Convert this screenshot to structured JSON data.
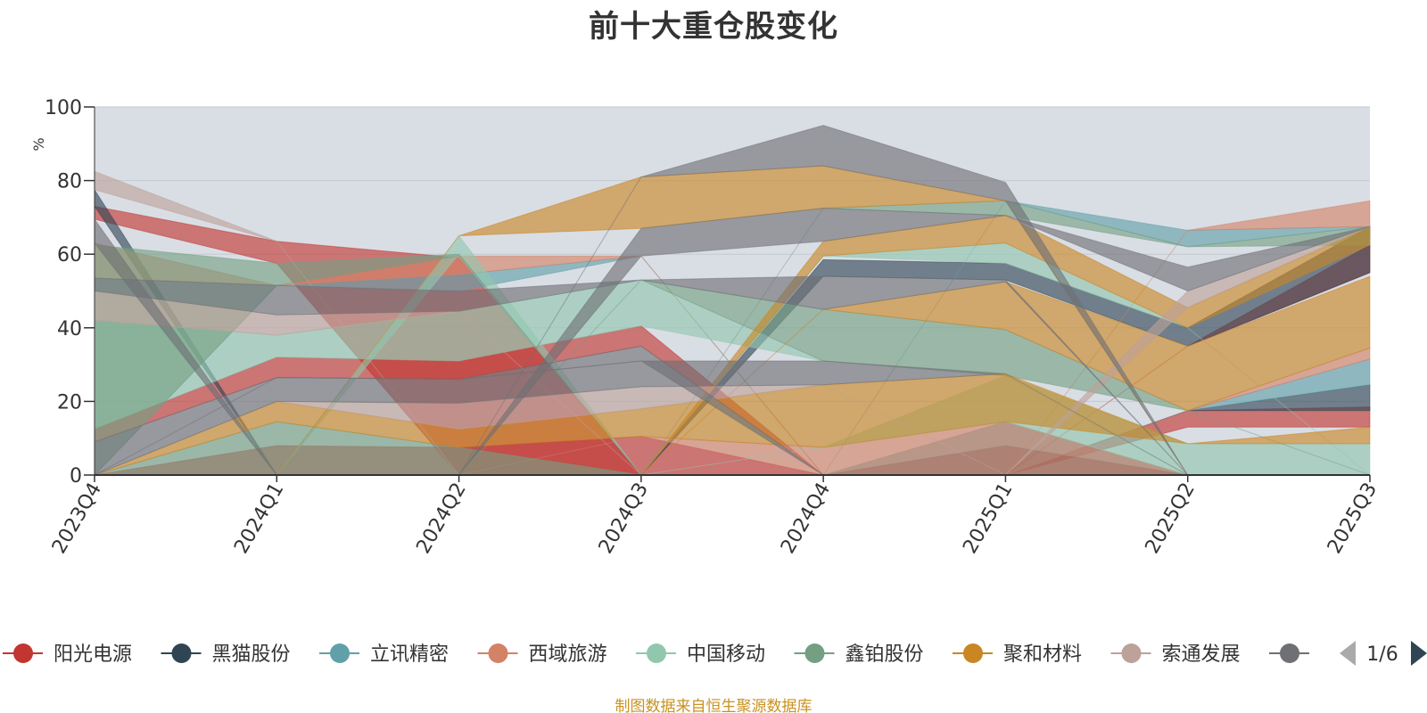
{
  "chart_data": {
    "type": "area",
    "stacked": false,
    "title": "前十大重仓股变化",
    "ylabel": "%",
    "ylim": [
      0,
      100
    ],
    "yticks": [
      0,
      20,
      40,
      60,
      80,
      100
    ],
    "categories": [
      "2023Q4",
      "2024Q1",
      "2024Q2",
      "2024Q3",
      "2024Q4",
      "2025Q1",
      "2025Q2",
      "2025Q3"
    ],
    "grid": true,
    "legend_position": "bottom",
    "legend_page": "1/6",
    "series": [
      {
        "name": "阳光电源",
        "color": "#c23531",
        "bands": [
          {
            "lower": [
              0,
              0,
              0,
              0,
              0,
              0,
              0,
              0
            ],
            "upper": [
              0,
              8,
              7.5,
              10.5,
              0,
              0,
              0,
              0
            ]
          },
          {
            "lower": [
              9,
              26.5,
              26,
              35,
              0,
              0,
              13,
              13
            ],
            "upper": [
              12.5,
              32,
              31,
              40.5,
              0,
              0,
              17.5,
              18.5
            ]
          },
          {
            "lower": [
              69.5,
              57.5,
              0,
              0,
              0,
              0,
              35,
              55
            ],
            "upper": [
              73,
              63.5,
              59,
              0,
              0,
              0,
              35,
              62.5
            ]
          }
        ]
      },
      {
        "name": "黑猫股份",
        "color": "#2f4554",
        "bands": [
          {
            "lower": [
              0,
              0,
              0,
              0,
              0,
              0,
              0,
              0
            ],
            "upper": [
              0,
              0,
              0,
              0,
              0,
              8,
              0,
              0
            ]
          },
          {
            "lower": [
              0,
              0,
              0,
              0,
              54,
              53,
              35,
              55
            ],
            "upper": [
              0,
              0,
              0,
              0,
              58.5,
              57.5,
              40,
              67.5
            ]
          },
          {
            "lower": [
              0,
              0,
              0,
              0,
              0,
              0,
              17.5,
              17.5
            ],
            "upper": [
              0,
              0,
              0,
              0,
              0,
              0,
              17.5,
              24.5
            ]
          },
          {
            "lower": [
              73,
              0,
              0,
              0,
              0,
              0,
              0,
              0
            ],
            "upper": [
              77.5,
              0,
              0,
              0,
              0,
              0,
              0,
              0
            ]
          }
        ]
      },
      {
        "name": "立讯精密",
        "color": "#61a0a8",
        "bands": [
          {
            "lower": [
              0,
              0,
              0,
              0,
              0,
              8,
              0,
              0
            ],
            "upper": [
              0,
              0,
              0,
              0,
              0,
              14.5,
              0,
              0
            ]
          },
          {
            "lower": [
              0,
              51.5,
              50,
              59.5,
              0,
              0,
              0,
              0
            ],
            "upper": [
              0,
              51.5,
              54.5,
              59.5,
              0,
              0,
              0,
              0
            ]
          },
          {
            "lower": [
              0,
              0,
              0,
              0,
              0,
              0,
              17.5,
              24.5
            ],
            "upper": [
              0,
              0,
              0,
              0,
              0,
              0,
              17.5,
              31.5
            ]
          },
          {
            "lower": [
              0,
              0,
              0,
              0,
              0,
              74.5,
              62,
              67.5
            ],
            "upper": [
              0,
              0,
              0,
              0,
              0,
              74.5,
              66.5,
              67.5
            ]
          }
        ]
      },
      {
        "name": "西域旅游",
        "color": "#d48265",
        "bands": [
          {
            "lower": [
              0,
              0,
              0,
              10.5,
              0,
              0,
              0,
              0
            ],
            "upper": [
              0,
              0,
              0,
              10.5,
              7.5,
              14.5,
              0,
              0
            ]
          },
          {
            "lower": [
              53.5,
              51.5,
              54.5,
              59.5,
              0,
              0,
              0,
              0
            ],
            "upper": [
              63,
              51.5,
              59.5,
              59.5,
              0,
              0,
              0,
              0
            ]
          },
          {
            "lower": [
              0,
              0,
              0,
              0,
              0,
              0,
              17.5,
              31.5
            ],
            "upper": [
              0,
              0,
              0,
              0,
              0,
              0,
              17.5,
              34.5
            ]
          },
          {
            "lower": [
              0,
              0,
              0,
              0,
              0,
              0,
              66.5,
              67.5
            ],
            "upper": [
              0,
              0,
              0,
              0,
              0,
              0,
              66.5,
              74.5
            ]
          }
        ]
      },
      {
        "name": "中国移动",
        "color": "#91c7ae",
        "bands": [
          {
            "lower": [
              12.5,
              32,
              31,
              40.5,
              31,
              27,
              0,
              0
            ],
            "upper": [
              42,
              38,
              44.5,
              53,
              31,
              27,
              0,
              0
            ]
          },
          {
            "lower": [
              0,
              0,
              0,
              0,
              7.5,
              14.5,
              0,
              0
            ],
            "upper": [
              0,
              0,
              0,
              0,
              7.5,
              27,
              8.5,
              8.5
            ]
          },
          {
            "lower": [
              0,
              0,
              60,
              0,
              0,
              0,
              0,
              0
            ],
            "upper": [
              0,
              0,
              65,
              0,
              0,
              0,
              0,
              0
            ]
          },
          {
            "lower": [
              0,
              0,
              0,
              0,
              59.5,
              57.5,
              40,
              0
            ],
            "upper": [
              0,
              0,
              0,
              0,
              59.5,
              63,
              40,
              0
            ]
          }
        ]
      },
      {
        "name": "鑫铂股份",
        "color": "#749f83",
        "bands": [
          {
            "lower": [
              0,
              0,
              0,
              0,
              0,
              0,
              0,
              0
            ],
            "upper": [
              0,
              14.5,
              7.5,
              0,
              0,
              0,
              0,
              0
            ]
          },
          {
            "lower": [
              0,
              0,
              0,
              53,
              31,
              27,
              17.5,
              0
            ],
            "upper": [
              0,
              0,
              0,
              53,
              45,
              39.5,
              17.5,
              0
            ]
          },
          {
            "lower": [
              0,
              51.5,
              59.5,
              0,
              0,
              0,
              0,
              0
            ],
            "upper": [
              62.5,
              57.5,
              60,
              0,
              0,
              0,
              0,
              0
            ]
          },
          {
            "lower": [
              0,
              0,
              0,
              0,
              72.5,
              70.5,
              62,
              62.5
            ],
            "upper": [
              0,
              0,
              0,
              0,
              72.5,
              74.5,
              62,
              67.5
            ]
          }
        ]
      },
      {
        "name": "聚和材料",
        "color": "#ca8622",
        "bands": [
          {
            "lower": [
              0,
              14.5,
              7.5,
              10.5,
              7.5,
              14.5,
              8.5,
              8.5
            ],
            "upper": [
              0,
              20,
              12.5,
              18,
              24.5,
              27.5,
              8.5,
              13
            ]
          },
          {
            "lower": [
              0,
              0,
              0,
              0,
              45,
              39.5,
              17.5,
              34.5
            ],
            "upper": [
              0,
              0,
              0,
              0,
              45,
              52.5,
              35,
              54
            ]
          },
          {
            "lower": [
              0,
              0,
              0,
              0,
              59.5,
              63,
              40,
              62.5
            ],
            "upper": [
              0,
              0,
              0,
              0,
              63.5,
              70.5,
              45.5,
              67.5
            ]
          },
          {
            "lower": [
              0,
              0,
              65,
              67,
              72.5,
              74.5,
              0,
              0
            ],
            "upper": [
              0,
              0,
              65,
              81,
              84,
              74.5,
              0,
              0
            ]
          }
        ]
      },
      {
        "name": "索通发展",
        "color": "#bda29a",
        "bands": [
          {
            "lower": [
              0,
              20,
              12.5,
              18,
              24.5,
              0,
              0,
              0
            ],
            "upper": [
              0,
              20,
              19.5,
              24,
              24.5,
              0,
              0,
              0
            ]
          },
          {
            "lower": [
              42,
              38,
              44.5,
              0,
              0,
              0,
              0,
              0
            ],
            "upper": [
              50,
              43.5,
              44.5,
              0,
              0,
              0,
              0,
              0
            ]
          },
          {
            "lower": [
              0,
              0,
              0,
              0,
              0,
              0,
              45.5,
              67.5
            ],
            "upper": [
              0,
              0,
              0,
              0,
              0,
              0,
              50,
              67.5
            ]
          },
          {
            "lower": [
              77.5,
              63.5,
              0,
              0,
              0,
              0,
              0,
              0
            ],
            "upper": [
              82.5,
              63.5,
              0,
              0,
              0,
              0,
              0,
              0
            ]
          }
        ]
      },
      {
        "name": "",
        "color": "#6e7074",
        "bands": [
          {
            "lower": [
              0,
              20,
              19.5,
              24,
              24.5,
              27.5,
              0,
              0
            ],
            "upper": [
              9,
              26.5,
              26,
              31,
              31,
              27.5,
              0,
              0
            ]
          },
          {
            "lower": [
              0,
              26.5,
              26,
              31,
              0,
              0,
              0,
              0
            ],
            "upper": [
              0,
              26.5,
              26,
              35,
              0,
              0,
              0,
              0
            ]
          },
          {
            "lower": [
              50,
              43.5,
              44.5,
              53,
              45,
              52.5,
              0,
              0
            ],
            "upper": [
              53.5,
              51.5,
              50,
              53,
              54,
              53,
              0,
              0
            ]
          },
          {
            "lower": [
              0,
              0,
              0,
              59.5,
              63.5,
              70.5,
              50,
              67.5
            ],
            "upper": [
              0,
              0,
              0,
              67,
              72.5,
              70.5,
              56.5,
              67.5
            ]
          },
          {
            "lower": [
              63,
              0,
              0,
              0,
              0,
              0,
              0,
              0
            ],
            "upper": [
              69.5,
              0,
              0,
              0,
              0,
              0,
              0,
              0
            ]
          },
          {
            "lower": [
              0,
              0,
              0,
              81,
              84,
              74.5,
              0,
              0
            ],
            "upper": [
              0,
              0,
              0,
              81,
              95,
              79.5,
              0,
              0
            ]
          }
        ]
      }
    ]
  },
  "legend": {
    "page_indicator": "1/6"
  },
  "footer": {
    "source_note": "制图数据来自恒生聚源数据库"
  }
}
